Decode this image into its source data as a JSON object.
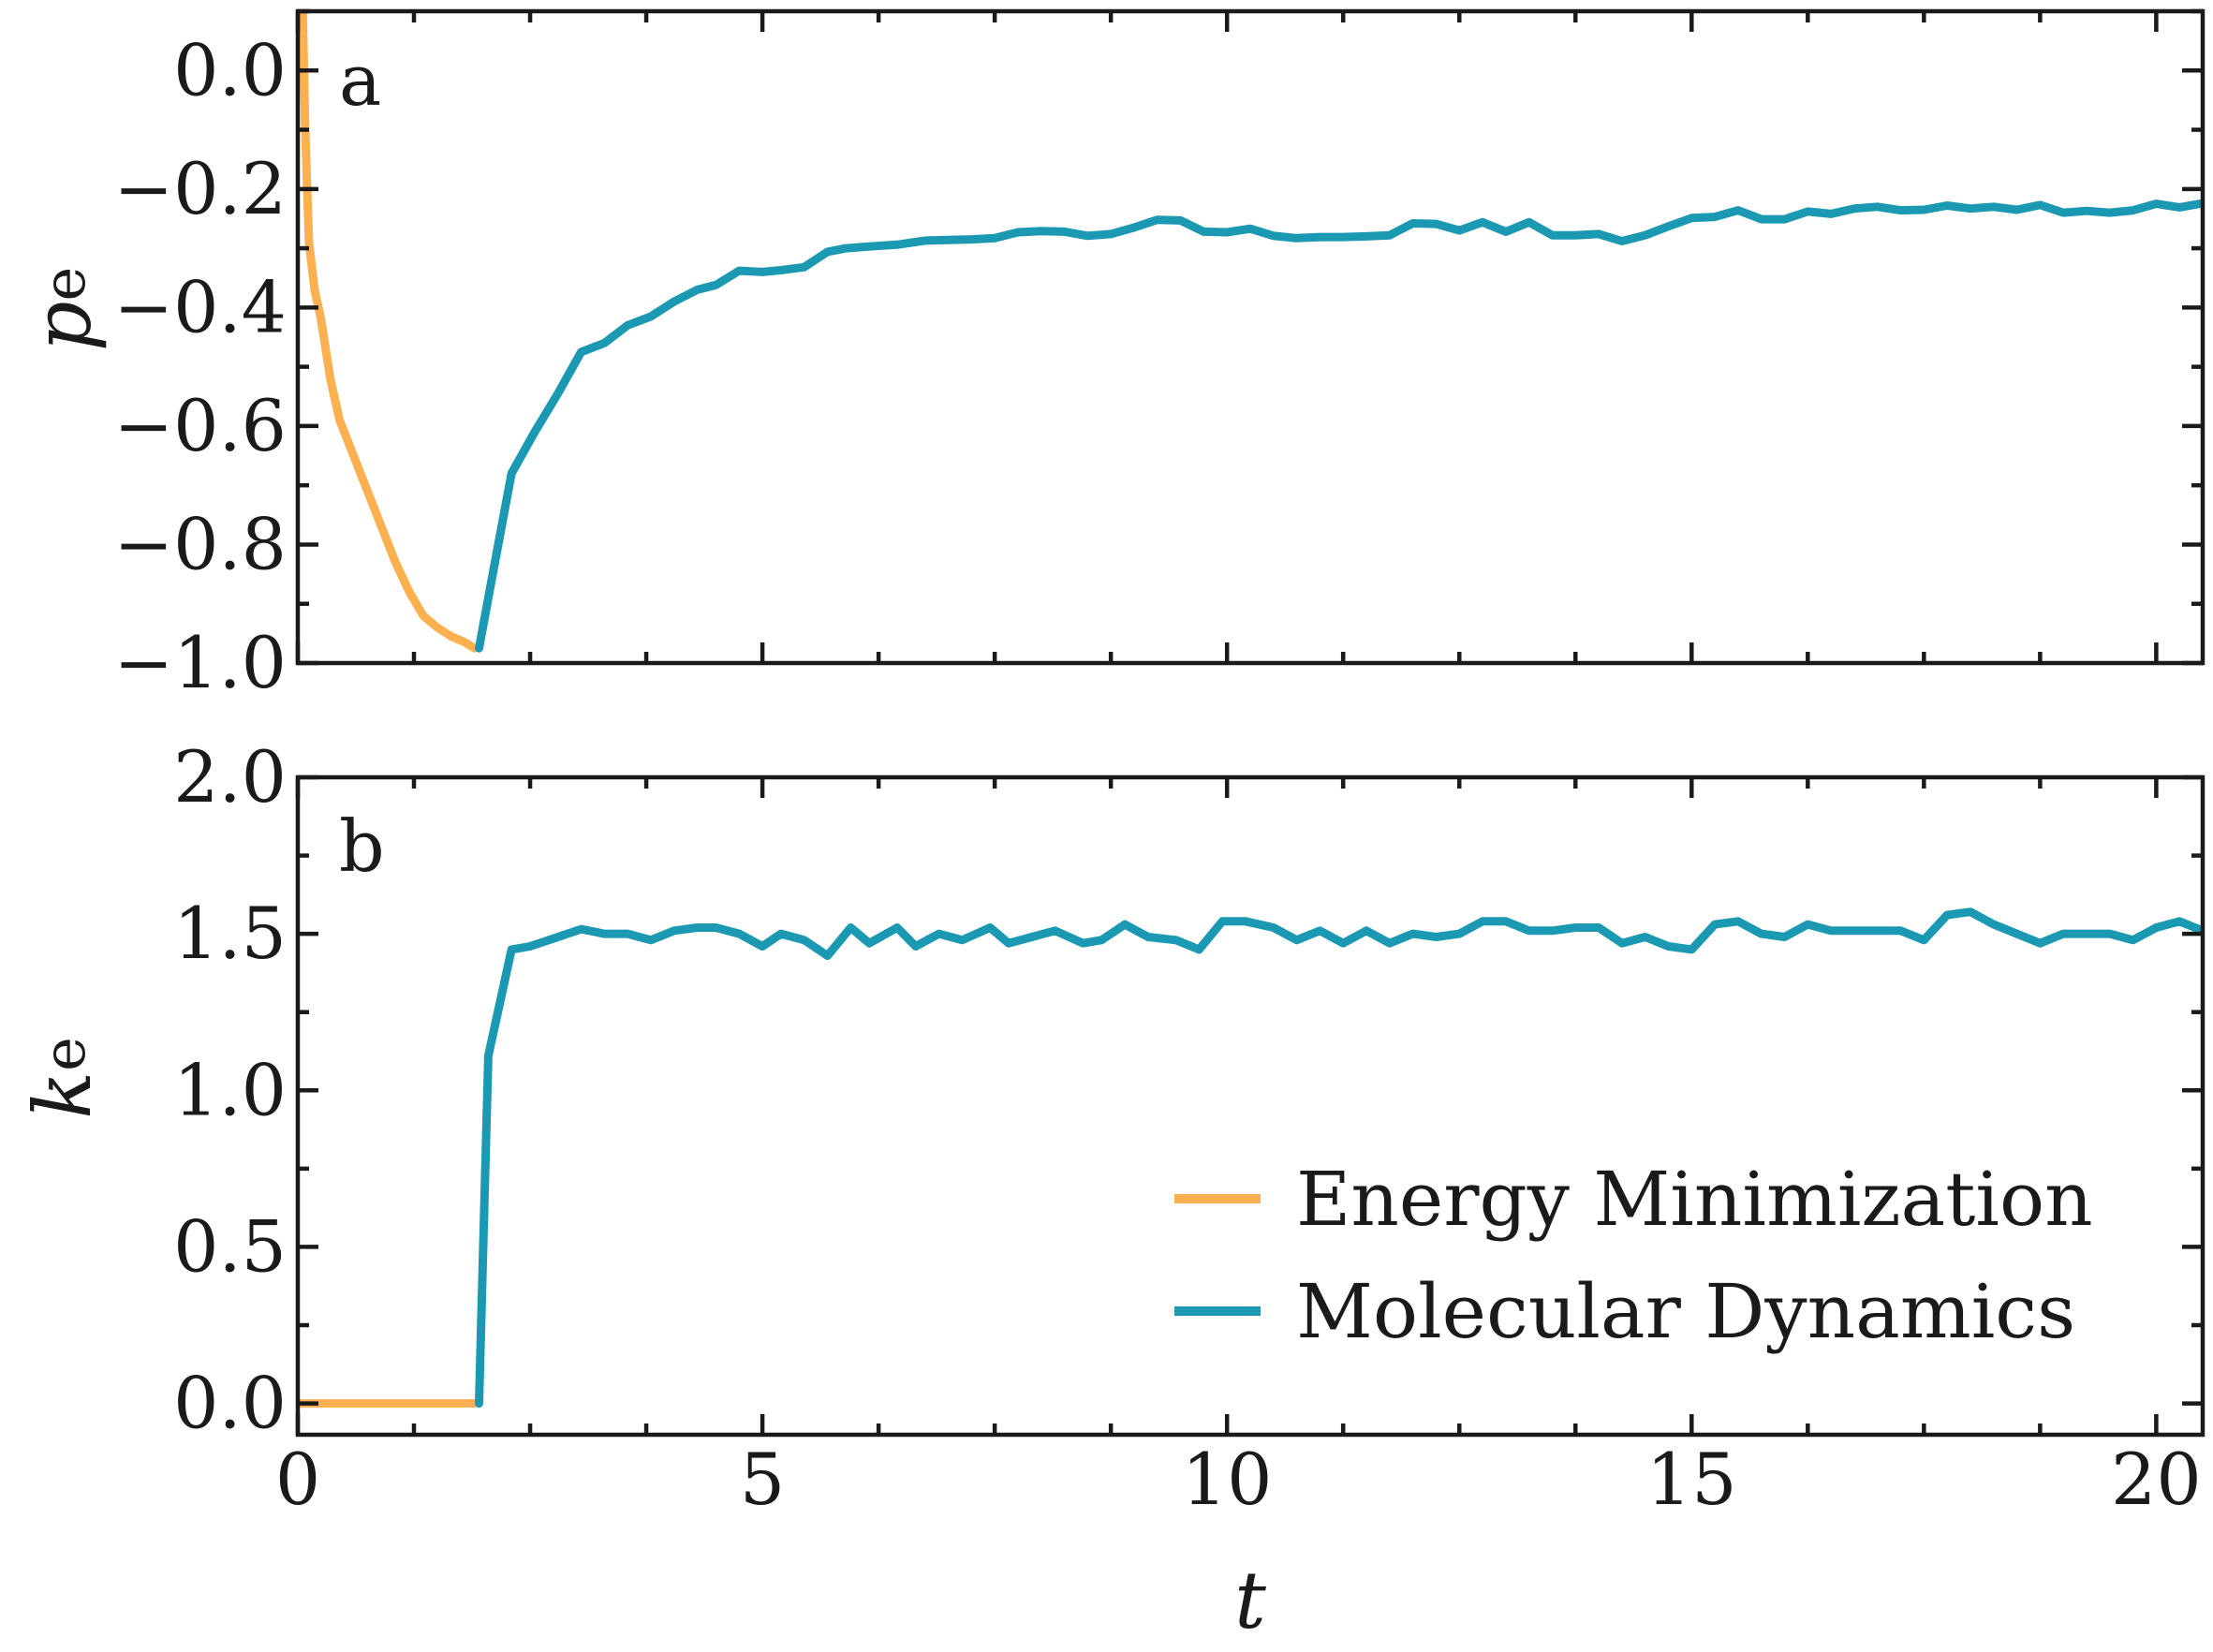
{
  "chart_data": [
    {
      "type": "line",
      "panel_label": "a",
      "ylabel": {
        "main": "p",
        "sub": "e"
      },
      "xlabel": "",
      "xlim": [
        0,
        20.5
      ],
      "ylim": [
        -1.0,
        0.1
      ],
      "x_ticks": [
        0,
        5,
        10,
        15,
        20
      ],
      "y_ticks": [
        -1.0,
        -0.8,
        -0.6,
        -0.4,
        -0.2,
        0.0
      ],
      "y_tick_labels": [
        "−1.0",
        "−0.8",
        "−0.6",
        "−0.4",
        "−0.2",
        "0.0"
      ],
      "show_x_tick_labels": false,
      "series": [
        {
          "name": "Energy Minimization",
          "color": "#fdb050",
          "x": [
            0.05,
            0.08,
            0.12,
            0.18,
            0.25,
            0.35,
            0.45,
            0.6,
            0.75,
            0.9,
            1.05,
            1.2,
            1.35,
            1.5,
            1.65,
            1.8,
            1.9
          ],
          "y": [
            0.12,
            -0.1,
            -0.29,
            -0.37,
            -0.42,
            -0.52,
            -0.59,
            -0.65,
            -0.71,
            -0.77,
            -0.83,
            -0.88,
            -0.92,
            -0.94,
            -0.955,
            -0.965,
            -0.975
          ]
        },
        {
          "name": "Molecular Dynamics",
          "color": "#1b99b3",
          "x": [
            1.95,
            2.05,
            2.3,
            2.55,
            2.8,
            3.05,
            3.3,
            3.55,
            3.8,
            4.05,
            4.3,
            4.5,
            4.75,
            5.0,
            5.2,
            5.45,
            5.7,
            5.9,
            6.15,
            6.45,
            6.75,
            7.0,
            7.25,
            7.5,
            7.75,
            8.0,
            8.25,
            8.5,
            8.75,
            9.0,
            9.25,
            9.5,
            9.75,
            10.0,
            10.25,
            10.5,
            10.75,
            11.0,
            11.25,
            11.5,
            11.75,
            12.0,
            12.25,
            12.5,
            12.75,
            13.0,
            13.25,
            13.5,
            13.75,
            14.0,
            14.25,
            14.5,
            14.75,
            15.0,
            15.25,
            15.5,
            15.75,
            16.0,
            16.25,
            16.5,
            16.75,
            17.0,
            17.25,
            17.5,
            17.75,
            18.0,
            18.25,
            18.5,
            18.75,
            19.0,
            19.25,
            19.5,
            19.75,
            20.0,
            20.25,
            20.5
          ],
          "y": [
            -0.975,
            -0.89,
            -0.68,
            -0.61,
            -0.545,
            -0.475,
            -0.46,
            -0.43,
            -0.415,
            -0.39,
            -0.37,
            -0.362,
            -0.338,
            -0.34,
            -0.337,
            -0.332,
            -0.306,
            -0.3,
            -0.297,
            -0.294,
            -0.287,
            -0.286,
            -0.285,
            -0.283,
            -0.273,
            -0.271,
            -0.272,
            -0.279,
            -0.276,
            -0.265,
            -0.252,
            -0.253,
            -0.272,
            -0.273,
            -0.267,
            -0.279,
            -0.283,
            -0.281,
            -0.281,
            -0.28,
            -0.278,
            -0.258,
            -0.259,
            -0.27,
            -0.256,
            -0.272,
            -0.256,
            -0.278,
            -0.278,
            -0.276,
            -0.288,
            -0.278,
            -0.263,
            -0.249,
            -0.247,
            -0.236,
            -0.251,
            -0.251,
            -0.238,
            -0.242,
            -0.233,
            -0.23,
            -0.236,
            -0.235,
            -0.228,
            -0.233,
            -0.23,
            -0.235,
            -0.227,
            -0.24,
            -0.237,
            -0.24,
            -0.236,
            -0.225,
            -0.231,
            -0.224
          ]
        }
      ]
    },
    {
      "type": "line",
      "panel_label": "b",
      "ylabel": {
        "main": "k",
        "sub": "e"
      },
      "xlabel": "t",
      "xlim": [
        0,
        20.5
      ],
      "ylim": [
        -0.1,
        2.0
      ],
      "x_ticks": [
        0,
        5,
        10,
        15,
        20
      ],
      "x_tick_labels": [
        "0",
        "5",
        "10",
        "15",
        "20"
      ],
      "y_ticks": [
        0.0,
        0.5,
        1.0,
        1.5,
        2.0
      ],
      "y_tick_labels": [
        "0.0",
        "0.5",
        "1.0",
        "1.5",
        "2.0"
      ],
      "show_x_tick_labels": true,
      "series": [
        {
          "name": "Energy Minimization",
          "color": "#fdb050",
          "x": [
            0.0,
            1.9
          ],
          "y": [
            0.0,
            0.0
          ]
        },
        {
          "name": "Molecular Dynamics",
          "color": "#1b99b3",
          "x": [
            1.95,
            2.05,
            2.3,
            2.5,
            2.8,
            3.05,
            3.3,
            3.55,
            3.8,
            4.05,
            4.3,
            4.5,
            4.75,
            5.0,
            5.2,
            5.45,
            5.7,
            5.95,
            6.15,
            6.45,
            6.65,
            6.9,
            7.15,
            7.45,
            7.65,
            7.9,
            8.15,
            8.45,
            8.65,
            8.9,
            9.15,
            9.45,
            9.7,
            9.95,
            10.2,
            10.5,
            10.75,
            11.0,
            11.25,
            11.5,
            11.75,
            12.0,
            12.25,
            12.5,
            12.75,
            13.0,
            13.25,
            13.5,
            13.75,
            14.0,
            14.25,
            14.5,
            14.75,
            15.0,
            15.25,
            15.5,
            15.75,
            16.0,
            16.25,
            16.5,
            16.75,
            17.0,
            17.25,
            17.5,
            17.75,
            18.0,
            18.25,
            18.5,
            18.75,
            19.0,
            19.25,
            19.5,
            19.75,
            20.0,
            20.25,
            20.5
          ],
          "y": [
            0.0,
            1.11,
            1.45,
            1.46,
            1.49,
            1.515,
            1.5,
            1.5,
            1.48,
            1.51,
            1.52,
            1.52,
            1.5,
            1.46,
            1.5,
            1.48,
            1.43,
            1.52,
            1.47,
            1.52,
            1.46,
            1.5,
            1.48,
            1.52,
            1.47,
            1.49,
            1.51,
            1.47,
            1.48,
            1.53,
            1.49,
            1.48,
            1.45,
            1.54,
            1.54,
            1.52,
            1.48,
            1.51,
            1.47,
            1.51,
            1.47,
            1.5,
            1.49,
            1.5,
            1.54,
            1.54,
            1.51,
            1.51,
            1.52,
            1.52,
            1.47,
            1.49,
            1.46,
            1.45,
            1.53,
            1.54,
            1.5,
            1.49,
            1.53,
            1.51,
            1.51,
            1.51,
            1.51,
            1.48,
            1.56,
            1.57,
            1.53,
            1.5,
            1.47,
            1.5,
            1.5,
            1.5,
            1.48,
            1.52,
            1.54,
            1.51
          ]
        }
      ],
      "legend": {
        "placement": "lower-right",
        "entries": [
          {
            "label": "Energy Minimization",
            "color": "#fdb050"
          },
          {
            "label": "Molecular Dynamics",
            "color": "#1b99b3"
          }
        ]
      }
    }
  ]
}
